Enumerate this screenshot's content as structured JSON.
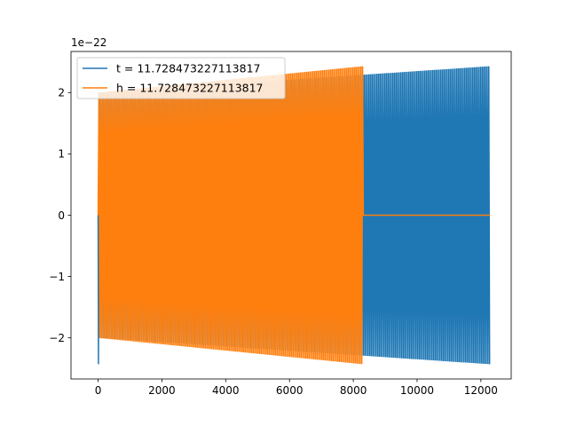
{
  "chart_data": {
    "type": "line",
    "title": "",
    "xlabel": "",
    "ylabel": "",
    "y_offset_label": "1e−22",
    "xlim": [
      -850,
      12950
    ],
    "ylim": [
      -2.67,
      2.67
    ],
    "x_ticks": [
      0,
      2000,
      4000,
      6000,
      8000,
      10000,
      12000
    ],
    "x_tick_labels": [
      "0",
      "2000",
      "4000",
      "6000",
      "8000",
      "10000",
      "12000"
    ],
    "y_ticks": [
      -2,
      -1,
      0,
      1,
      2
    ],
    "y_tick_labels": [
      "−2",
      "−1",
      "0",
      "1",
      "2"
    ],
    "grid": false,
    "legend_position": "top-left",
    "series": [
      {
        "name": "t = 11.728473227113817",
        "color": "#1f77b4",
        "kind": "oscillation",
        "x_start": 0,
        "x_end": 12288,
        "amplitude_start": 2.0,
        "amplitude_end": 2.43,
        "initial_spike": -2.43,
        "zero_after": null
      },
      {
        "name": "h = 11.728473227113817",
        "color": "#ff7f0e",
        "kind": "oscillation",
        "x_start": 0,
        "x_end": 8300,
        "amplitude_start": 2.0,
        "amplitude_end": 2.43,
        "initial_spike": 0.8,
        "zero_after": 12288
      }
    ]
  }
}
